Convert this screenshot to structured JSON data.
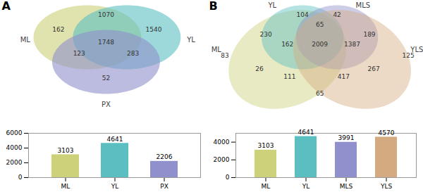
{
  "chart_data": [
    {
      "type": "venn",
      "title": "A",
      "series": [
        {
          "name": "ML",
          "color": "#cdd17a"
        },
        {
          "name": "YL",
          "color": "#5bbfc2"
        },
        {
          "name": "PX",
          "color": "#9090cc"
        }
      ],
      "values": [
        162,
        1070,
        1540,
        123,
        1748,
        283,
        52
      ]
    },
    {
      "type": "bar",
      "categories": [
        "ML",
        "YL",
        "PX"
      ],
      "values": [
        3103,
        4641,
        2206
      ],
      "colors": [
        "#cdd17a",
        "#5bbfc2",
        "#9090cc"
      ],
      "ylim": [
        0,
        6000
      ],
      "yticks": [
        0,
        2000,
        4000,
        6000
      ],
      "data_labels": true
    },
    {
      "type": "venn",
      "title": "B",
      "series": [
        {
          "name": "ML",
          "color": "#cdd17a"
        },
        {
          "name": "YL",
          "color": "#5bbfc2"
        },
        {
          "name": "MLS",
          "color": "#9090cc"
        },
        {
          "name": "YLS",
          "color": "#d4aa80"
        }
      ],
      "values": [
        83,
        230,
        104,
        42,
        189,
        125,
        162,
        65,
        1387,
        2009,
        26,
        111,
        417,
        267,
        65
      ]
    },
    {
      "type": "bar",
      "categories": [
        "ML",
        "YL",
        "MLS",
        "YLS"
      ],
      "values": [
        3103,
        4641,
        3991,
        4570
      ],
      "colors": [
        "#cdd17a",
        "#5bbfc2",
        "#9090cc",
        "#d4aa80"
      ],
      "ylim": [
        0,
        5000
      ],
      "yticks": [
        0,
        2000,
        4000
      ],
      "data_labels": true
    }
  ]
}
